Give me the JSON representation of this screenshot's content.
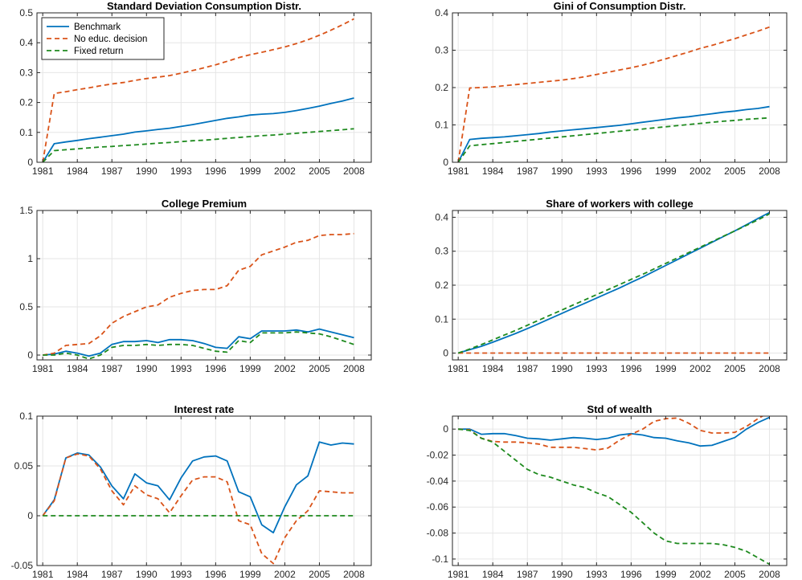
{
  "colors": {
    "benchmark": "#0072BD",
    "no_educ": "#D95319",
    "fixed": "#1E8A1E"
  },
  "chart_data": [
    {
      "id": "std-consumption",
      "type": "line",
      "title": "Standard Deviation Consumption Distr.",
      "xlim": [
        1980.5,
        2009.5
      ],
      "ylim": [
        0,
        0.5
      ],
      "xticks": [
        1981,
        1984,
        1987,
        1990,
        1993,
        1996,
        1999,
        2002,
        2005,
        2008
      ],
      "yticks": [
        0,
        0.1,
        0.2,
        0.3,
        0.4,
        0.5
      ],
      "ytick_labels": [
        "0",
        "0.1",
        "0.2",
        "0.3",
        "0.4",
        "0.5"
      ],
      "legend": {
        "location": "top-left",
        "entries": [
          "Benchmark",
          "No educ. decision",
          "Fixed return"
        ]
      },
      "x": [
        1981,
        1982,
        1983,
        1984,
        1985,
        1986,
        1987,
        1988,
        1989,
        1990,
        1991,
        1992,
        1993,
        1994,
        1995,
        1996,
        1997,
        1998,
        1999,
        2000,
        2001,
        2002,
        2003,
        2004,
        2005,
        2006,
        2007,
        2008
      ],
      "series": [
        {
          "name": "Benchmark",
          "style": "solid",
          "color_key": "benchmark",
          "values": [
            0,
            0.062,
            0.068,
            0.073,
            0.079,
            0.084,
            0.089,
            0.094,
            0.101,
            0.105,
            0.11,
            0.114,
            0.12,
            0.126,
            0.133,
            0.14,
            0.147,
            0.152,
            0.158,
            0.161,
            0.163,
            0.167,
            0.173,
            0.18,
            0.188,
            0.197,
            0.205,
            0.215
          ]
        },
        {
          "name": "No educ. decision",
          "style": "dashed",
          "color_key": "no_educ",
          "values": [
            0,
            0.23,
            0.236,
            0.243,
            0.249,
            0.256,
            0.262,
            0.267,
            0.274,
            0.28,
            0.285,
            0.29,
            0.298,
            0.307,
            0.316,
            0.326,
            0.338,
            0.35,
            0.36,
            0.368,
            0.377,
            0.386,
            0.397,
            0.41,
            0.425,
            0.442,
            0.46,
            0.48
          ]
        },
        {
          "name": "Fixed return",
          "style": "dashed",
          "color_key": "fixed",
          "values": [
            0,
            0.039,
            0.042,
            0.045,
            0.048,
            0.051,
            0.053,
            0.056,
            0.058,
            0.061,
            0.064,
            0.066,
            0.069,
            0.072,
            0.074,
            0.077,
            0.08,
            0.083,
            0.086,
            0.089,
            0.091,
            0.094,
            0.097,
            0.1,
            0.103,
            0.106,
            0.109,
            0.112
          ]
        }
      ]
    },
    {
      "id": "gini-consumption",
      "type": "line",
      "title": "Gini of Consumption Distr.",
      "xlim": [
        1980.5,
        2009.5
      ],
      "ylim": [
        0,
        0.4
      ],
      "xticks": [
        1981,
        1984,
        1987,
        1990,
        1993,
        1996,
        1999,
        2002,
        2005,
        2008
      ],
      "yticks": [
        0,
        0.1,
        0.2,
        0.3,
        0.4
      ],
      "ytick_labels": [
        "0",
        "0.1",
        "0.2",
        "0.3",
        "0.4"
      ],
      "x": [
        1981,
        1982,
        1983,
        1984,
        1985,
        1986,
        1987,
        1988,
        1989,
        1990,
        1991,
        1992,
        1993,
        1994,
        1995,
        1996,
        1997,
        1998,
        1999,
        2000,
        2001,
        2002,
        2003,
        2004,
        2005,
        2006,
        2007,
        2008
      ],
      "series": [
        {
          "name": "Benchmark",
          "style": "solid",
          "color_key": "benchmark",
          "values": [
            0,
            0.061,
            0.064,
            0.066,
            0.068,
            0.071,
            0.074,
            0.077,
            0.081,
            0.084,
            0.087,
            0.09,
            0.093,
            0.096,
            0.099,
            0.103,
            0.107,
            0.111,
            0.115,
            0.119,
            0.122,
            0.126,
            0.13,
            0.134,
            0.137,
            0.141,
            0.144,
            0.149
          ]
        },
        {
          "name": "No educ. decision",
          "style": "dashed",
          "color_key": "no_educ",
          "values": [
            0,
            0.199,
            0.2,
            0.202,
            0.205,
            0.208,
            0.211,
            0.214,
            0.217,
            0.22,
            0.224,
            0.229,
            0.235,
            0.241,
            0.247,
            0.253,
            0.26,
            0.268,
            0.277,
            0.286,
            0.295,
            0.305,
            0.313,
            0.322,
            0.331,
            0.341,
            0.351,
            0.362
          ]
        },
        {
          "name": "Fixed return",
          "style": "dashed",
          "color_key": "fixed",
          "values": [
            0,
            0.044,
            0.047,
            0.05,
            0.053,
            0.056,
            0.059,
            0.062,
            0.065,
            0.068,
            0.071,
            0.074,
            0.077,
            0.08,
            0.083,
            0.086,
            0.089,
            0.092,
            0.095,
            0.098,
            0.101,
            0.104,
            0.107,
            0.11,
            0.112,
            0.115,
            0.117,
            0.119
          ]
        }
      ]
    },
    {
      "id": "college-premium",
      "type": "line",
      "title": "College Premium",
      "xlim": [
        1980.5,
        2009.5
      ],
      "ylim": [
        -0.05,
        1.5
      ],
      "xticks": [
        1981,
        1984,
        1987,
        1990,
        1993,
        1996,
        1999,
        2002,
        2005,
        2008
      ],
      "yticks": [
        0,
        0.5,
        1,
        1.5
      ],
      "ytick_labels": [
        "0",
        "0.5",
        "1",
        "1.5"
      ],
      "x": [
        1981,
        1982,
        1983,
        1984,
        1985,
        1986,
        1987,
        1988,
        1989,
        1990,
        1991,
        1992,
        1993,
        1994,
        1995,
        1996,
        1997,
        1998,
        1999,
        2000,
        2001,
        2002,
        2003,
        2004,
        2005,
        2006,
        2007,
        2008
      ],
      "series": [
        {
          "name": "Benchmark",
          "style": "solid",
          "color_key": "benchmark",
          "values": [
            0,
            0.01,
            0.04,
            0.02,
            -0.01,
            0.02,
            0.11,
            0.14,
            0.14,
            0.15,
            0.13,
            0.16,
            0.16,
            0.15,
            0.12,
            0.08,
            0.07,
            0.19,
            0.17,
            0.25,
            0.25,
            0.25,
            0.26,
            0.24,
            0.27,
            0.24,
            0.21,
            0.18
          ]
        },
        {
          "name": "No educ. decision",
          "style": "dashed",
          "color_key": "no_educ",
          "values": [
            0,
            0.02,
            0.1,
            0.11,
            0.12,
            0.2,
            0.33,
            0.4,
            0.45,
            0.5,
            0.52,
            0.6,
            0.64,
            0.67,
            0.68,
            0.68,
            0.72,
            0.88,
            0.92,
            1.04,
            1.08,
            1.12,
            1.17,
            1.19,
            1.24,
            1.25,
            1.25,
            1.26
          ]
        },
        {
          "name": "Fixed return",
          "style": "dashed",
          "color_key": "fixed",
          "values": [
            0,
            0.0,
            0.02,
            0.0,
            -0.04,
            0.0,
            0.08,
            0.1,
            0.1,
            0.11,
            0.1,
            0.11,
            0.11,
            0.1,
            0.07,
            0.04,
            0.03,
            0.15,
            0.13,
            0.23,
            0.23,
            0.23,
            0.24,
            0.23,
            0.22,
            0.19,
            0.15,
            0.11
          ]
        }
      ]
    },
    {
      "id": "share-college",
      "type": "line",
      "title": "Share of workers with college",
      "xlim": [
        1980.5,
        2009.5
      ],
      "ylim": [
        -0.02,
        0.42
      ],
      "xticks": [
        1981,
        1984,
        1987,
        1990,
        1993,
        1996,
        1999,
        2002,
        2005,
        2008
      ],
      "yticks": [
        0,
        0.1,
        0.2,
        0.3,
        0.4
      ],
      "ytick_labels": [
        "0",
        "0.1",
        "0.2",
        "0.3",
        "0.4"
      ],
      "x": [
        1981,
        1982,
        1983,
        1984,
        1985,
        1986,
        1987,
        1988,
        1989,
        1990,
        1991,
        1992,
        1993,
        1994,
        1995,
        1996,
        1997,
        1998,
        1999,
        2000,
        2001,
        2002,
        2003,
        2004,
        2005,
        2006,
        2007,
        2008
      ],
      "series": [
        {
          "name": "Benchmark",
          "style": "solid",
          "color_key": "benchmark",
          "values": [
            0,
            0.01,
            0.02,
            0.032,
            0.045,
            0.058,
            0.072,
            0.087,
            0.102,
            0.117,
            0.132,
            0.147,
            0.162,
            0.177,
            0.192,
            0.208,
            0.224,
            0.241,
            0.258,
            0.275,
            0.292,
            0.309,
            0.326,
            0.343,
            0.36,
            0.378,
            0.396,
            0.414
          ]
        },
        {
          "name": "No educ. decision",
          "style": "dashed",
          "color_key": "no_educ",
          "values": [
            0,
            0,
            0,
            0,
            0,
            0,
            0,
            0,
            0,
            0,
            0,
            0,
            0,
            0,
            0,
            0,
            0,
            0,
            0,
            0,
            0,
            0,
            0,
            0,
            0,
            0,
            0,
            0
          ]
        },
        {
          "name": "Fixed return",
          "style": "dashed",
          "color_key": "fixed",
          "values": [
            0,
            0.012,
            0.025,
            0.039,
            0.053,
            0.067,
            0.082,
            0.097,
            0.112,
            0.127,
            0.142,
            0.157,
            0.172,
            0.187,
            0.202,
            0.217,
            0.232,
            0.248,
            0.264,
            0.28,
            0.296,
            0.312,
            0.328,
            0.344,
            0.36,
            0.376,
            0.392,
            0.41
          ]
        }
      ]
    },
    {
      "id": "interest-rate",
      "type": "line",
      "title": "Interest rate",
      "xlim": [
        1980.5,
        2009.5
      ],
      "ylim": [
        -0.05,
        0.1
      ],
      "xticks": [
        1981,
        1984,
        1987,
        1990,
        1993,
        1996,
        1999,
        2002,
        2005,
        2008
      ],
      "yticks": [
        -0.05,
        0,
        0.05,
        0.1
      ],
      "ytick_labels": [
        "-0.05",
        "0",
        "0.05",
        "0.1"
      ],
      "x": [
        1981,
        1982,
        1983,
        1984,
        1985,
        1986,
        1987,
        1988,
        1989,
        1990,
        1991,
        1992,
        1993,
        1994,
        1995,
        1996,
        1997,
        1998,
        1999,
        2000,
        2001,
        2002,
        2003,
        2004,
        2005,
        2006,
        2007,
        2008
      ],
      "series": [
        {
          "name": "Benchmark",
          "style": "solid",
          "color_key": "benchmark",
          "values": [
            0,
            0.016,
            0.058,
            0.063,
            0.061,
            0.049,
            0.03,
            0.017,
            0.042,
            0.033,
            0.03,
            0.016,
            0.038,
            0.055,
            0.059,
            0.06,
            0.055,
            0.024,
            0.019,
            -0.009,
            -0.017,
            0.009,
            0.031,
            0.04,
            0.074,
            0.071,
            0.073,
            0.072
          ]
        },
        {
          "name": "No educ. decision",
          "style": "dashed",
          "color_key": "no_educ",
          "values": [
            0,
            0.015,
            0.058,
            0.062,
            0.06,
            0.047,
            0.025,
            0.011,
            0.03,
            0.021,
            0.017,
            0.003,
            0.02,
            0.036,
            0.039,
            0.039,
            0.034,
            -0.005,
            -0.009,
            -0.038,
            -0.048,
            -0.022,
            -0.005,
            0.005,
            0.025,
            0.024,
            0.023,
            0.023
          ]
        },
        {
          "name": "Fixed return",
          "style": "dashed",
          "color_key": "fixed",
          "values": [
            0,
            0,
            0,
            0,
            0,
            0,
            0,
            0,
            0,
            0,
            0,
            0,
            0,
            0,
            0,
            0,
            0,
            0,
            0,
            0,
            0,
            0,
            0,
            0,
            0,
            0,
            0,
            0
          ]
        }
      ]
    },
    {
      "id": "std-wealth",
      "type": "line",
      "title": "Std of wealth",
      "xlim": [
        1980.5,
        2009.5
      ],
      "ylim": [
        -0.105,
        0.01
      ],
      "xticks": [
        1981,
        1984,
        1987,
        1990,
        1993,
        1996,
        1999,
        2002,
        2005,
        2008
      ],
      "yticks": [
        0,
        -0.02,
        -0.04,
        -0.06,
        -0.08,
        -0.1
      ],
      "ytick_labels": [
        "0",
        "-0.02",
        "-0.04",
        "-0.06",
        "-0.08",
        "-0.1"
      ],
      "x": [
        1981,
        1982,
        1983,
        1984,
        1985,
        1986,
        1987,
        1988,
        1989,
        1990,
        1991,
        1992,
        1993,
        1994,
        1995,
        1996,
        1997,
        1998,
        1999,
        2000,
        2001,
        2002,
        2003,
        2004,
        2005,
        2006,
        2007,
        2008
      ],
      "series": [
        {
          "name": "Benchmark",
          "style": "solid",
          "color_key": "benchmark",
          "values": [
            0,
            0,
            -0.004,
            -0.0035,
            -0.0035,
            -0.005,
            -0.007,
            -0.0075,
            -0.0085,
            -0.0075,
            -0.0065,
            -0.007,
            -0.008,
            -0.007,
            -0.0045,
            -0.0035,
            -0.0045,
            -0.0065,
            -0.007,
            -0.009,
            -0.0105,
            -0.013,
            -0.0125,
            -0.0095,
            -0.0065,
            0,
            0.005,
            0.009
          ]
        },
        {
          "name": "No educ. decision",
          "style": "dashed",
          "color_key": "no_educ",
          "values": [
            0,
            -0.0005,
            -0.007,
            -0.0095,
            -0.01,
            -0.01,
            -0.0105,
            -0.0115,
            -0.014,
            -0.014,
            -0.014,
            -0.015,
            -0.016,
            -0.0145,
            -0.0085,
            -0.004,
            0,
            0.006,
            0.008,
            0.0085,
            0.0045,
            -0.001,
            -0.003,
            -0.003,
            -0.0025,
            0.002,
            0.008,
            0.013
          ]
        },
        {
          "name": "Fixed return",
          "style": "dashed",
          "color_key": "fixed",
          "values": [
            0,
            -0.001,
            -0.007,
            -0.01,
            -0.017,
            -0.024,
            -0.031,
            -0.035,
            -0.037,
            -0.04,
            -0.043,
            -0.045,
            -0.049,
            -0.052,
            -0.058,
            -0.064,
            -0.072,
            -0.08,
            -0.086,
            -0.088,
            -0.088,
            -0.088,
            -0.088,
            -0.089,
            -0.091,
            -0.094,
            -0.099,
            -0.104
          ]
        }
      ]
    }
  ]
}
